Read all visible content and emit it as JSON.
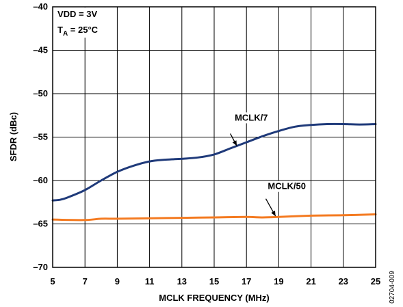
{
  "chart_data": {
    "type": "line",
    "title": "",
    "xlabel": "MCLK FREQUENCY (MHz)",
    "ylabel": "SFDR (dBc)",
    "xlim": [
      5,
      25
    ],
    "ylim": [
      -70,
      -40
    ],
    "x_ticks": [
      5,
      7,
      9,
      11,
      13,
      15,
      17,
      19,
      21,
      23,
      25
    ],
    "x_tick_labels": [
      "5",
      "7",
      "9",
      "11",
      "13",
      "15",
      "17",
      "19",
      "21",
      "23",
      "25"
    ],
    "y_ticks": [
      -40,
      -45,
      -50,
      -55,
      -60,
      -65,
      -70
    ],
    "y_tick_labels": [
      "–40",
      "–45",
      "–50",
      "–55",
      "–60",
      "–65",
      "–70"
    ],
    "grid": true,
    "conditions": {
      "line1": "VDD = 3V",
      "line2_main": "T",
      "line2_sub": "A",
      "line2_rest": " = 25°C"
    },
    "figure_id": "02704-009",
    "series": [
      {
        "name": "MCLK/7",
        "color": "#1f3a7a",
        "x": [
          5,
          5.5,
          6,
          7,
          8,
          9,
          10,
          11,
          12,
          13,
          14,
          15,
          16,
          17,
          18,
          19,
          20,
          21,
          22,
          23,
          24,
          25
        ],
        "y": [
          -62.3,
          -62.2,
          -61.9,
          -61.1,
          -60.0,
          -59.0,
          -58.3,
          -57.8,
          -57.6,
          -57.5,
          -57.35,
          -57.0,
          -56.3,
          -55.6,
          -54.9,
          -54.3,
          -53.8,
          -53.6,
          -53.5,
          -53.5,
          -53.55,
          -53.5
        ]
      },
      {
        "name": "MCLK/50",
        "color": "#f47a20",
        "x": [
          5,
          7,
          8,
          9,
          11,
          13,
          15,
          17,
          18,
          19,
          21,
          23,
          25
        ],
        "y": [
          -64.5,
          -64.55,
          -64.4,
          -64.4,
          -64.35,
          -64.3,
          -64.25,
          -64.2,
          -64.25,
          -64.2,
          -64.05,
          -64.0,
          -63.9
        ]
      }
    ],
    "annotations": [
      {
        "label": "MCLK/7",
        "text_x": 17.3,
        "text_y": -53.1,
        "arrow_from": [
          16.0,
          -54.6
        ],
        "arrow_to": [
          16.4,
          -56.0
        ]
      },
      {
        "label": "MCLK/50",
        "text_x": 19.5,
        "text_y": -61.0,
        "arrow_from": [
          18.2,
          -62.1
        ],
        "arrow_to": [
          18.8,
          -64.1
        ]
      }
    ]
  }
}
